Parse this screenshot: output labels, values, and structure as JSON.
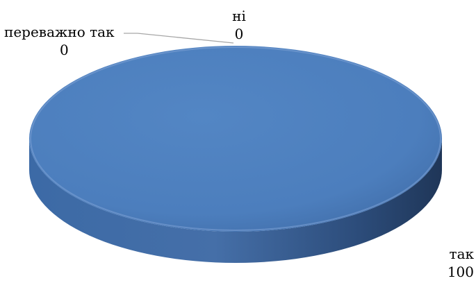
{
  "chart_data": {
    "type": "pie",
    "title": "",
    "categories": [
      "ні",
      "переважно так",
      "так"
    ],
    "values": [
      0,
      0,
      100
    ],
    "style": "3d",
    "legend": "none",
    "colors": {
      "slice": "#4f81bd",
      "slice_dark": "#2f5082",
      "leader_line": "#a6a6a6",
      "label_text": "#000000"
    }
  }
}
